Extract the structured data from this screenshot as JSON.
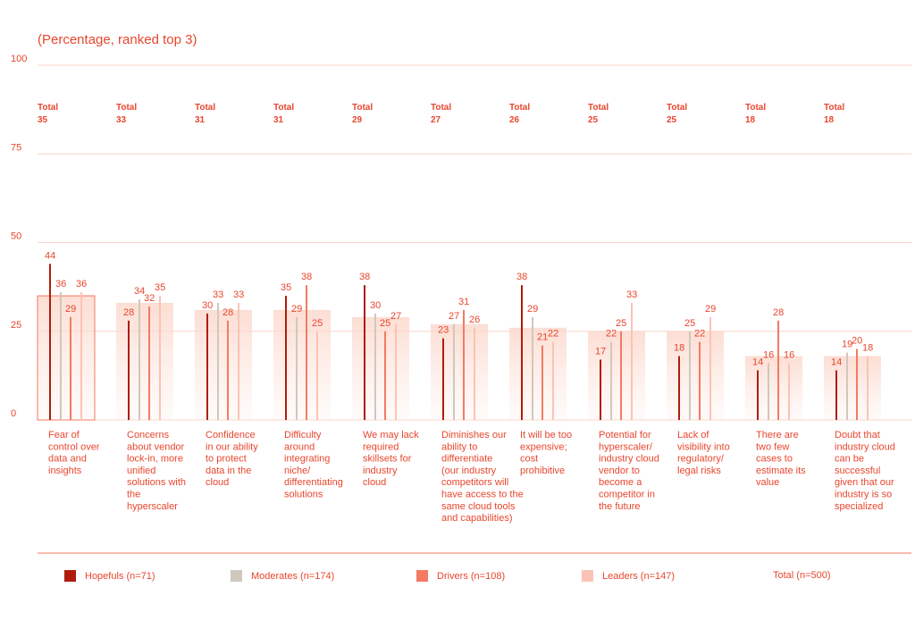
{
  "chart_data": {
    "type": "bar",
    "title": "(Percentage, ranked top 3)",
    "ylim": [
      0,
      100
    ],
    "yticks": [
      "100",
      "75",
      "50",
      "25",
      "0"
    ],
    "categories": [
      "Fear of control over data and insights",
      "Concerns about vendor lock-in, more unified solutions with the hyperscaler",
      "Confidence in our ability to protect data in the cloud",
      "Difficulty around integrating niche/ differentiating solutions",
      "We may lack required skillsets for industry cloud",
      "Diminishes our ability to differentiate (our industry competitors will have access to the same cloud tools and capabilities)",
      "It will be too expensive; cost prohibitive",
      "Potential for hyperscaler/ industry cloud vendor to become a competitor in the future",
      "Lack of visibility into regulatory/ legal risks",
      "There are two few cases to estimate its value",
      "Doubt that industry cloud can be successful given that our industry is so specialized"
    ],
    "category_lines": [
      [
        "Fear of",
        "control over",
        "data and",
        "insights"
      ],
      [
        "Concerns",
        "about vendor",
        "lock-in, more",
        "unified",
        "solutions with",
        "the",
        "hyperscaler"
      ],
      [
        "Confidence",
        "in our ability",
        "to protect",
        "data in the",
        "cloud"
      ],
      [
        "Difficulty",
        "around",
        "integrating",
        "niche/",
        "differentiating",
        "solutions"
      ],
      [
        "We may lack",
        "required",
        "skillsets for",
        "industry",
        "cloud"
      ],
      [
        "Diminishes our",
        "ability to",
        "differentiate",
        "(our industry",
        "competitors will",
        "have access to the",
        "same cloud tools",
        "and capabilities)"
      ],
      [
        "It will be too",
        "expensive;",
        "cost",
        "prohibitive"
      ],
      [
        "Potential for",
        "hyperscaler/",
        "industry cloud",
        "vendor to",
        "become a",
        "competitor in",
        "the future"
      ],
      [
        "Lack of",
        "visibility into",
        "regulatory/",
        "legal risks"
      ],
      [
        "There are",
        "two few",
        "cases to",
        "estimate its",
        "value"
      ],
      [
        "Doubt that",
        "industry cloud",
        "can be",
        "successful",
        "given that our",
        "industry is so",
        "specialized"
      ]
    ],
    "total_label": "Total",
    "series": [
      {
        "name": "Hopefuls (n=71)",
        "color": "#b01c0c",
        "values": [
          44,
          28,
          30,
          35,
          38,
          23,
          38,
          17,
          18,
          14,
          14
        ]
      },
      {
        "name": "Moderates (n=174)",
        "color": "#cfc8bc",
        "values": [
          36,
          34,
          33,
          29,
          30,
          27,
          29,
          22,
          25,
          16,
          19
        ]
      },
      {
        "name": "Drivers (n=108)",
        "color": "#f47a62",
        "values": [
          29,
          32,
          28,
          38,
          25,
          31,
          21,
          25,
          22,
          28,
          20
        ]
      },
      {
        "name": "Leaders (n=147)",
        "color": "#fbc3b4",
        "values": [
          36,
          35,
          33,
          25,
          27,
          26,
          22,
          33,
          29,
          16,
          18
        ]
      },
      {
        "name": "Total (n=500)",
        "color": "#fde4dc",
        "values": [
          35,
          33,
          31,
          31,
          29,
          27,
          26,
          25,
          25,
          18,
          18
        ]
      }
    ]
  }
}
